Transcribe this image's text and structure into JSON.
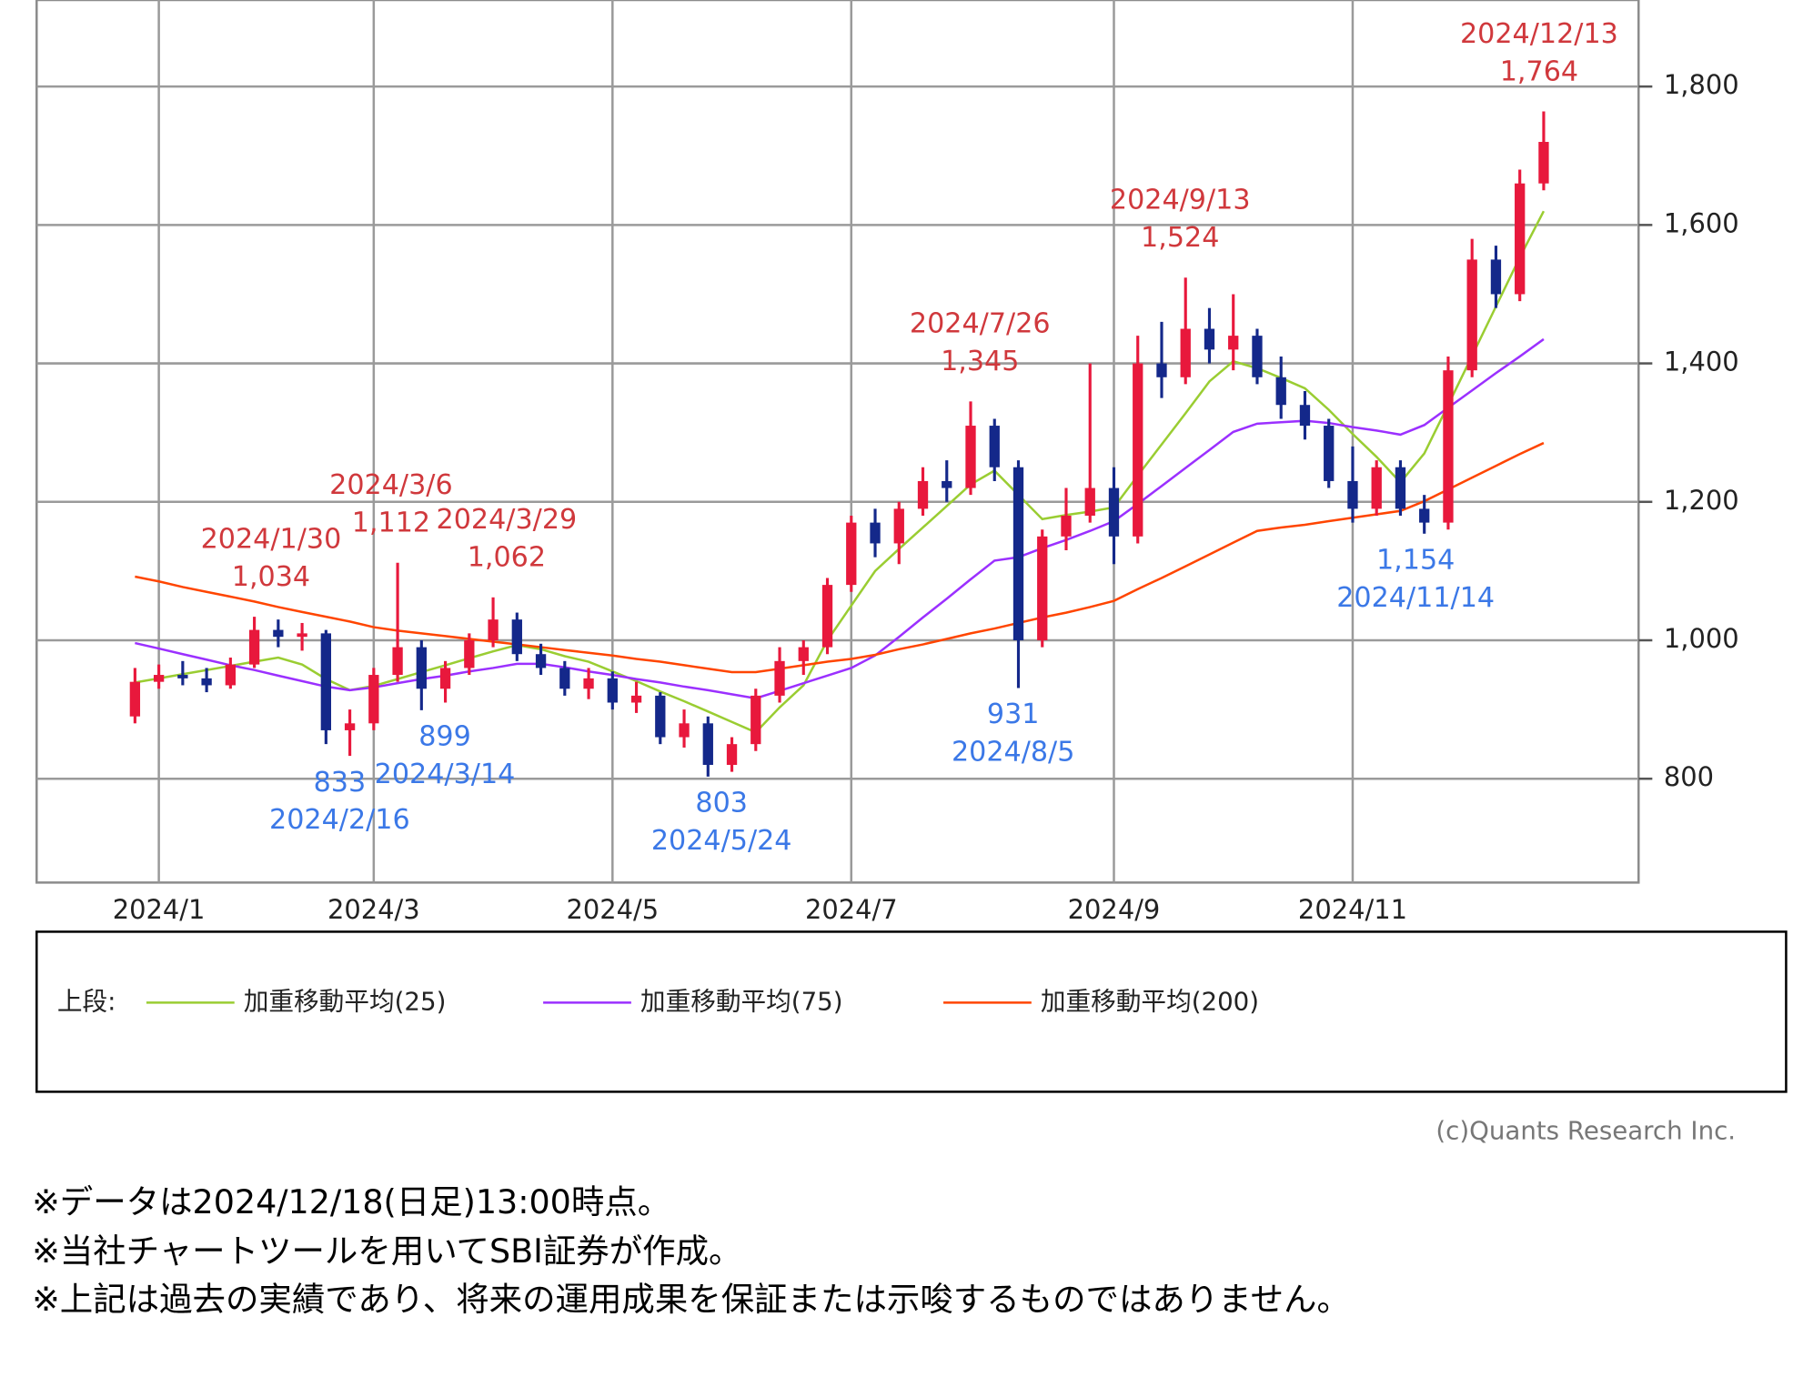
{
  "chart_data": {
    "type": "candlestick",
    "categories": [
      null,
      "2024/1",
      null,
      null,
      null,
      null,
      null,
      null,
      null,
      null,
      "2024/3",
      null,
      null,
      null,
      null,
      null,
      null,
      null,
      null,
      null,
      "2024/5",
      null,
      null,
      null,
      null,
      null,
      null,
      null,
      null,
      null,
      "2024/7",
      null,
      null,
      null,
      null,
      null,
      null,
      null,
      null,
      null,
      null,
      "2024/9",
      null,
      null,
      null,
      null,
      null,
      null,
      null,
      null,
      null,
      "2024/11",
      null,
      null,
      null,
      null,
      null,
      null,
      null,
      null
    ],
    "open": [
      890,
      940,
      950,
      945,
      935,
      965,
      1015,
      1005,
      1010,
      870,
      880,
      950,
      990,
      930,
      960,
      1000,
      1030,
      980,
      960,
      930,
      945,
      910,
      920,
      860,
      880,
      820,
      850,
      920,
      970,
      990,
      1080,
      1170,
      1140,
      1190,
      1230,
      1220,
      1310,
      1250,
      1000,
      1150,
      1180,
      1220,
      1150,
      1400,
      1380,
      1450,
      1420,
      1440,
      1380,
      1340,
      1310,
      1230,
      1190,
      1250,
      1190,
      1170,
      1390,
      1550,
      1500,
      1660
    ],
    "high": [
      960,
      965,
      970,
      960,
      975,
      1034,
      1030,
      1025,
      1015,
      900,
      960,
      1112,
      1000,
      970,
      1010,
      1062,
      1040,
      995,
      970,
      960,
      955,
      940,
      925,
      900,
      890,
      860,
      930,
      990,
      1000,
      1090,
      1180,
      1190,
      1200,
      1250,
      1260,
      1345,
      1320,
      1260,
      1160,
      1220,
      1400,
      1250,
      1440,
      1460,
      1524,
      1480,
      1500,
      1450,
      1410,
      1360,
      1320,
      1280,
      1260,
      1260,
      1210,
      1410,
      1580,
      1570,
      1680,
      1764
    ],
    "low": [
      880,
      930,
      935,
      925,
      930,
      960,
      990,
      985,
      850,
      833,
      870,
      940,
      899,
      910,
      950,
      990,
      970,
      950,
      920,
      915,
      900,
      895,
      850,
      845,
      803,
      810,
      840,
      910,
      950,
      980,
      1070,
      1120,
      1110,
      1180,
      1200,
      1210,
      1230,
      931,
      990,
      1130,
      1170,
      1110,
      1140,
      1350,
      1370,
      1400,
      1390,
      1370,
      1320,
      1290,
      1220,
      1170,
      1180,
      1180,
      1154,
      1160,
      1380,
      1480,
      1490,
      1650
    ],
    "close": [
      940,
      950,
      945,
      935,
      965,
      1015,
      1005,
      1010,
      870,
      880,
      950,
      990,
      930,
      960,
      1000,
      1030,
      980,
      960,
      930,
      945,
      910,
      920,
      860,
      880,
      820,
      850,
      920,
      970,
      990,
      1080,
      1170,
      1140,
      1190,
      1230,
      1220,
      1310,
      1250,
      1000,
      1150,
      1180,
      1220,
      1150,
      1400,
      1380,
      1450,
      1420,
      1440,
      1380,
      1340,
      1310,
      1230,
      1190,
      1250,
      1190,
      1170,
      1390,
      1550,
      1500,
      1660,
      1720
    ],
    "up_color": "#e8183c",
    "down_color": "#14288a",
    "series": [
      {
        "name": "加重移動平均(25)",
        "color": "#9acd32",
        "values": [
          939,
          945,
          951,
          957,
          963,
          969,
          975,
          965,
          944,
          928,
          934,
          944,
          954,
          964,
          974,
          984,
          993,
          987,
          977,
          969,
          955,
          941,
          926,
          912,
          897,
          882,
          867,
          903,
          935,
          1000,
          1050,
          1100,
          1132,
          1163,
          1194,
          1225,
          1245,
          1210,
          1175,
          1181,
          1186,
          1192,
          1238,
          1283,
          1328,
          1374,
          1403,
          1393,
          1379,
          1364,
          1333,
          1298,
          1265,
          1228,
          1270,
          1340,
          1411,
          1482,
          1553,
          1620
        ]
      },
      {
        "name": "加重移動平均(75)",
        "color": "#9b30ff",
        "values": [
          996,
          988,
          980,
          972,
          964,
          957,
          949,
          941,
          933,
          928,
          932,
          938,
          944,
          949,
          955,
          960,
          966,
          966,
          961,
          955,
          950,
          944,
          939,
          933,
          928,
          922,
          916,
          927,
          938,
          949,
          960,
          978,
          1005,
          1033,
          1060,
          1088,
          1115,
          1120,
          1133,
          1145,
          1158,
          1172,
          1197,
          1223,
          1249,
          1275,
          1301,
          1313,
          1315,
          1317,
          1314,
          1308,
          1303,
          1297,
          1311,
          1336,
          1361,
          1386,
          1410,
          1435
        ]
      },
      {
        "name": "加重移動平均(200)",
        "color": "#ff4500",
        "values": [
          1092,
          1085,
          1077,
          1070,
          1063,
          1056,
          1048,
          1041,
          1034,
          1027,
          1019,
          1014,
          1010,
          1006,
          1002,
          998,
          994,
          990,
          986,
          982,
          978,
          973,
          969,
          964,
          959,
          954,
          954,
          959,
          964,
          969,
          973,
          979,
          987,
          994,
          1002,
          1010,
          1017,
          1025,
          1033,
          1040,
          1048,
          1057,
          1074,
          1090,
          1107,
          1124,
          1141,
          1158,
          1163,
          1167,
          1172,
          1177,
          1182,
          1187,
          1201,
          1218,
          1235,
          1252,
          1269,
          1285
        ]
      }
    ],
    "ylim": [
      650,
      1925
    ],
    "yticks": [
      800,
      {
        "value": 1000,
        "label": "1,000"
      },
      {
        "value": 1200,
        "label": "1,200"
      },
      {
        "value": 1400,
        "label": "1,400"
      },
      {
        "value": 1600,
        "label": "1,600"
      },
      {
        "value": 1800,
        "label": "1,800"
      }
    ],
    "grid": true,
    "legend_title": "上段:",
    "high_color": "#d0383c",
    "low_color": "#3b78e7",
    "annotations": [
      {
        "kind": "high",
        "date": "2024/1/30",
        "value": 1034,
        "label": "1,034"
      },
      {
        "kind": "high",
        "date": "2024/3/6",
        "value": 1112,
        "label": "1,112"
      },
      {
        "kind": "high",
        "date": "2024/3/29",
        "value": 1062,
        "label": "1,062"
      },
      {
        "kind": "high",
        "date": "2024/7/26",
        "value": 1345,
        "label": "1,345"
      },
      {
        "kind": "high",
        "date": "2024/9/13",
        "value": 1524,
        "label": "1,524"
      },
      {
        "kind": "high",
        "date": "2024/12/13",
        "value": 1764,
        "label": "1,764"
      },
      {
        "kind": "low",
        "date": "2024/2/16",
        "value": 833,
        "label": "833"
      },
      {
        "kind": "low",
        "date": "2024/3/14",
        "value": 899,
        "label": "899"
      },
      {
        "kind": "low",
        "date": "2024/5/24",
        "value": 803,
        "label": "803"
      },
      {
        "kind": "low",
        "date": "2024/8/5",
        "value": 931,
        "label": "931"
      },
      {
        "kind": "low",
        "date": "2024/11/14",
        "value": 1154,
        "label": "1,154"
      }
    ]
  },
  "copyright": "(c)Quants Research Inc.",
  "notes": [
    "※データは2024/12/18(日足)13:00時点。",
    "※当社チャートツールを用いてSBI証券が作成。",
    "※上記は過去の実績であり、将来の運用成果を保証または示唆するものではありません。"
  ]
}
